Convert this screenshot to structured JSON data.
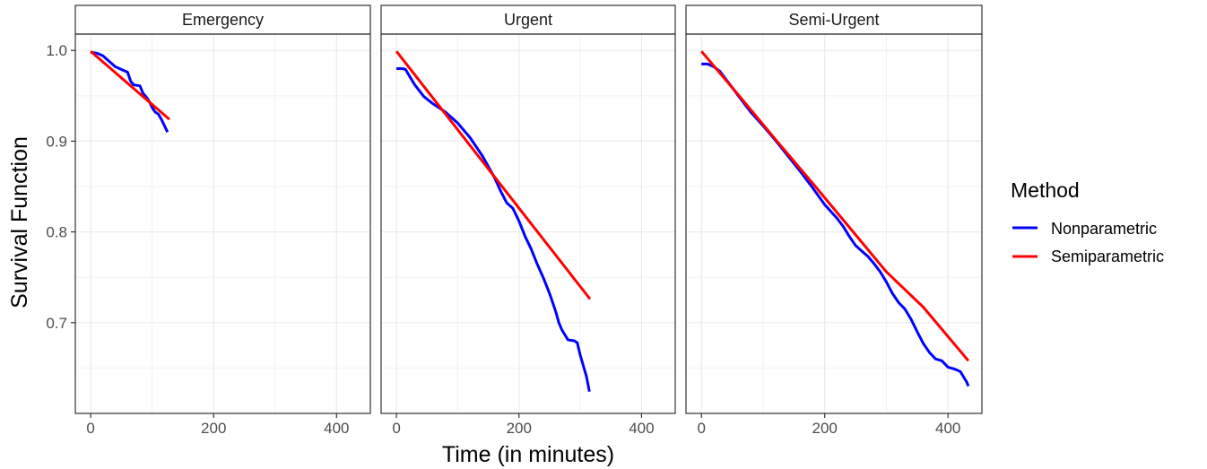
{
  "chart_data": {
    "type": "line",
    "xlabel": "Time (in minutes)",
    "ylabel": "Survival Function",
    "xlim": [
      -25,
      455
    ],
    "ylim": [
      0.6,
      1.018
    ],
    "x_ticks": [
      0,
      200,
      400
    ],
    "x_tick_labels": [
      "0",
      "200",
      "400"
    ],
    "y_ticks": [
      0.7,
      0.8,
      0.9,
      1.0
    ],
    "y_tick_labels": [
      "0.7",
      "0.8",
      "0.9",
      "1.0"
    ],
    "grid": true,
    "legend": {
      "title": "Method",
      "position": "right",
      "entries": [
        {
          "label": "Nonparametric",
          "color": "#0000ff"
        },
        {
          "label": "Semiparametric",
          "color": "#ff0000"
        }
      ]
    },
    "panels": [
      {
        "title": "Emergency",
        "series": [
          {
            "name": "Nonparametric",
            "color": "#0000ff",
            "x": [
              0,
              10,
              20,
              30,
              40,
              50,
              60,
              65,
              70,
              80,
              85,
              90,
              95,
              100,
              105,
              110,
              115,
              120,
              125
            ],
            "y": [
              0.998,
              0.997,
              0.994,
              0.988,
              0.982,
              0.979,
              0.976,
              0.966,
              0.962,
              0.961,
              0.953,
              0.949,
              0.944,
              0.937,
              0.932,
              0.93,
              0.924,
              0.917,
              0.91
            ]
          },
          {
            "name": "Semiparametric",
            "color": "#ff0000",
            "x": [
              0,
              128
            ],
            "y": [
              0.999,
              0.924
            ]
          }
        ]
      },
      {
        "title": "Urgent",
        "series": [
          {
            "name": "Nonparametric",
            "color": "#0000ff",
            "x": [
              0,
              10,
              15,
              20,
              30,
              45,
              60,
              80,
              100,
              120,
              140,
              160,
              170,
              180,
              190,
              200,
              210,
              220,
              230,
              240,
              250,
              260,
              265,
              270,
              280,
              290,
              295,
              300,
              310,
              315
            ],
            "y": [
              0.98,
              0.98,
              0.979,
              0.973,
              0.962,
              0.949,
              0.941,
              0.932,
              0.92,
              0.904,
              0.884,
              0.86,
              0.845,
              0.832,
              0.826,
              0.812,
              0.795,
              0.781,
              0.764,
              0.749,
              0.732,
              0.712,
              0.7,
              0.692,
              0.681,
              0.68,
              0.678,
              0.664,
              0.641,
              0.624
            ]
          },
          {
            "name": "Semiparametric",
            "color": "#ff0000",
            "x": [
              0,
              316
            ],
            "y": [
              0.999,
              0.726
            ]
          }
        ]
      },
      {
        "title": "Semi-Urgent",
        "series": [
          {
            "name": "Nonparametric",
            "color": "#0000ff",
            "x": [
              0,
              10,
              20,
              30,
              40,
              50,
              60,
              80,
              100,
              120,
              140,
              160,
              180,
              200,
              220,
              230,
              240,
              250,
              260,
              270,
              280,
              290,
              300,
              310,
              320,
              330,
              340,
              350,
              360,
              370,
              380,
              390,
              400,
              410,
              420,
              430,
              433
            ],
            "y": [
              0.985,
              0.985,
              0.982,
              0.977,
              0.968,
              0.959,
              0.95,
              0.932,
              0.917,
              0.901,
              0.884,
              0.867,
              0.849,
              0.83,
              0.815,
              0.806,
              0.795,
              0.785,
              0.779,
              0.773,
              0.765,
              0.756,
              0.745,
              0.732,
              0.722,
              0.715,
              0.704,
              0.69,
              0.677,
              0.667,
              0.66,
              0.658,
              0.651,
              0.649,
              0.646,
              0.635,
              0.63
            ]
          },
          {
            "name": "Semiparametric",
            "color": "#ff0000",
            "x": [
              0,
              60,
              120,
              180,
              240,
              300,
              360,
              433
            ],
            "y": [
              0.999,
              0.951,
              0.902,
              0.854,
              0.805,
              0.756,
              0.717,
              0.658
            ]
          }
        ]
      }
    ]
  }
}
